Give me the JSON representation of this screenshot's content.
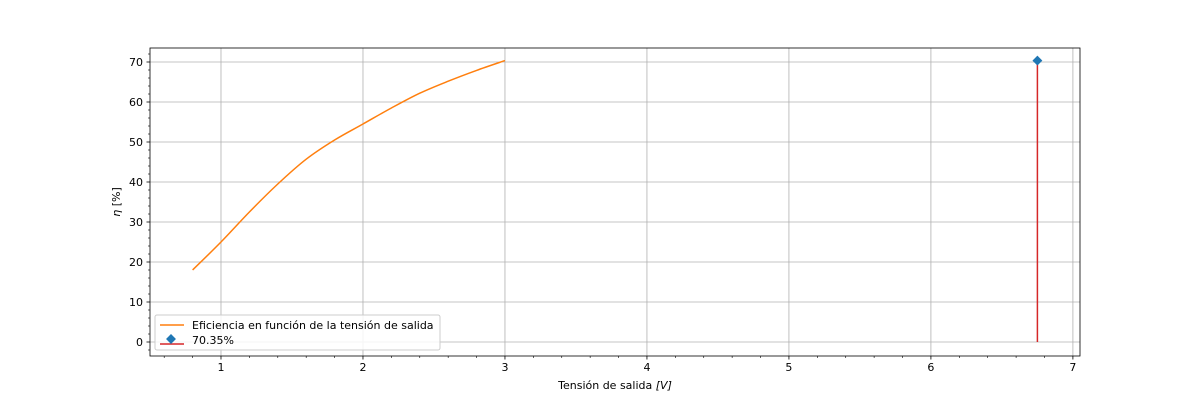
{
  "chart_data": {
    "type": "line",
    "xlabel_text": "Tensión de salida ",
    "xlabel_unit": "[V]",
    "ylabel_symbol": "η",
    "ylabel_unit": " [%]",
    "xlim": [
      0.5,
      7.05
    ],
    "ylim": [
      -3.5,
      73.5
    ],
    "xticks": [
      1,
      2,
      3,
      4,
      5,
      6,
      7
    ],
    "yticks": [
      0,
      10,
      20,
      30,
      40,
      50,
      60,
      70
    ],
    "xminor_step": 0.2,
    "yminor_step": 2,
    "grid": true,
    "legend_placement": "lower-left",
    "series": [
      {
        "name": "Eficiencia en función de la tensión de salida",
        "kind": "line",
        "color": "#ff7f0e",
        "x": [
          0.8,
          1.0,
          1.2,
          1.4,
          1.6,
          1.8,
          2.0,
          2.2,
          2.4,
          2.6,
          2.8,
          3.0
        ],
        "y": [
          18.0,
          25.0,
          32.5,
          39.5,
          45.7,
          50.5,
          54.5,
          58.5,
          62.2,
          65.2,
          67.9,
          70.35
        ]
      },
      {
        "name": "70.35%",
        "kind": "stem",
        "marker_color": "#1f77b4",
        "line_color": "#d62728",
        "x": [
          6.75
        ],
        "y": [
          70.35
        ]
      }
    ]
  }
}
